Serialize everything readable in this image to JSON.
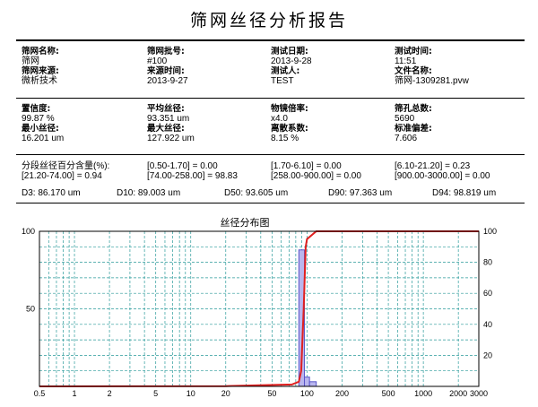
{
  "report": {
    "title": "筛网丝径分析报告",
    "info_rows": [
      [
        {
          "label": "筛网名称:",
          "value": "筛网",
          "label2": "筛网来源:",
          "value2": "微析技术"
        },
        {
          "label": "筛网批号:",
          "value": "#100",
          "label2": "来源时间:",
          "value2": "2013-9-27"
        },
        {
          "label": "测试日期:",
          "value": "2013-9-28",
          "label2": "测试人:",
          "value2": "TEST"
        },
        {
          "label": "测试时间:",
          "value": "11:51",
          "label2": "文件名称:",
          "value2": "筛网-1309281.pvw"
        }
      ],
      [
        {
          "label": "置信度:",
          "value": "99.87 %",
          "label2": "最小丝径:",
          "value2": "16.201 um"
        },
        {
          "label": "平均丝径:",
          "value": "93.351 um",
          "label2": "最大丝径:",
          "value2": "127.922 um"
        },
        {
          "label": "物镜倍率:",
          "value": "x4.0",
          "label2": "离散系数:",
          "value2": "8.15 %"
        },
        {
          "label": "筛孔总数:",
          "value": "5690",
          "label2": "标准偏差:",
          "value2": "7.606"
        }
      ]
    ],
    "segments": {
      "label": "分段丝径百分含量(%):",
      "items": [
        "[0.50-1.70] = 0.00",
        "[1.70-6.10] = 0.00",
        "[6.10-21.20] = 0.23",
        "[21.20-74.00] = 0.94",
        "[74.00-258.00] = 98.83",
        "[258.00-900.00] = 0.00",
        "[900.00-3000.00] = 0.00"
      ]
    },
    "d_values": [
      "D3: 86.170 um",
      "D10: 89.003 um",
      "D50: 93.605 um",
      "D90: 97.363 um",
      "D94: 98.819 um"
    ]
  },
  "chart_data": {
    "type": "bar",
    "title": "丝径分布图",
    "x_scale": "log",
    "xlim": [
      0.5,
      3000
    ],
    "x_ticks": [
      0.5,
      1,
      2,
      5,
      10,
      20,
      50,
      100,
      200,
      500,
      1000,
      2000,
      3000
    ],
    "y_left_ticks": [
      100,
      50
    ],
    "y_right_ticks": [
      100,
      80,
      60,
      40,
      20
    ],
    "ylim": [
      0,
      100
    ],
    "grid": true,
    "bars": [
      {
        "x0": 85,
        "x1": 95,
        "value": 88
      },
      {
        "x0": 95,
        "x1": 105,
        "value": 6
      },
      {
        "x0": 105,
        "x1": 120,
        "value": 3
      }
    ],
    "cumulative": [
      {
        "x": 0.5,
        "y": 0
      },
      {
        "x": 20,
        "y": 0.2
      },
      {
        "x": 74,
        "y": 1.2
      },
      {
        "x": 85,
        "y": 3
      },
      {
        "x": 89,
        "y": 10
      },
      {
        "x": 93.6,
        "y": 50
      },
      {
        "x": 97.4,
        "y": 90
      },
      {
        "x": 100,
        "y": 95
      },
      {
        "x": 120,
        "y": 100
      },
      {
        "x": 3000,
        "y": 100
      }
    ],
    "colors": {
      "bar_fill": "#b9b6ee",
      "bar_stroke": "#5a55c8",
      "line": "#e02020",
      "grid": "#2a9a9a"
    }
  }
}
